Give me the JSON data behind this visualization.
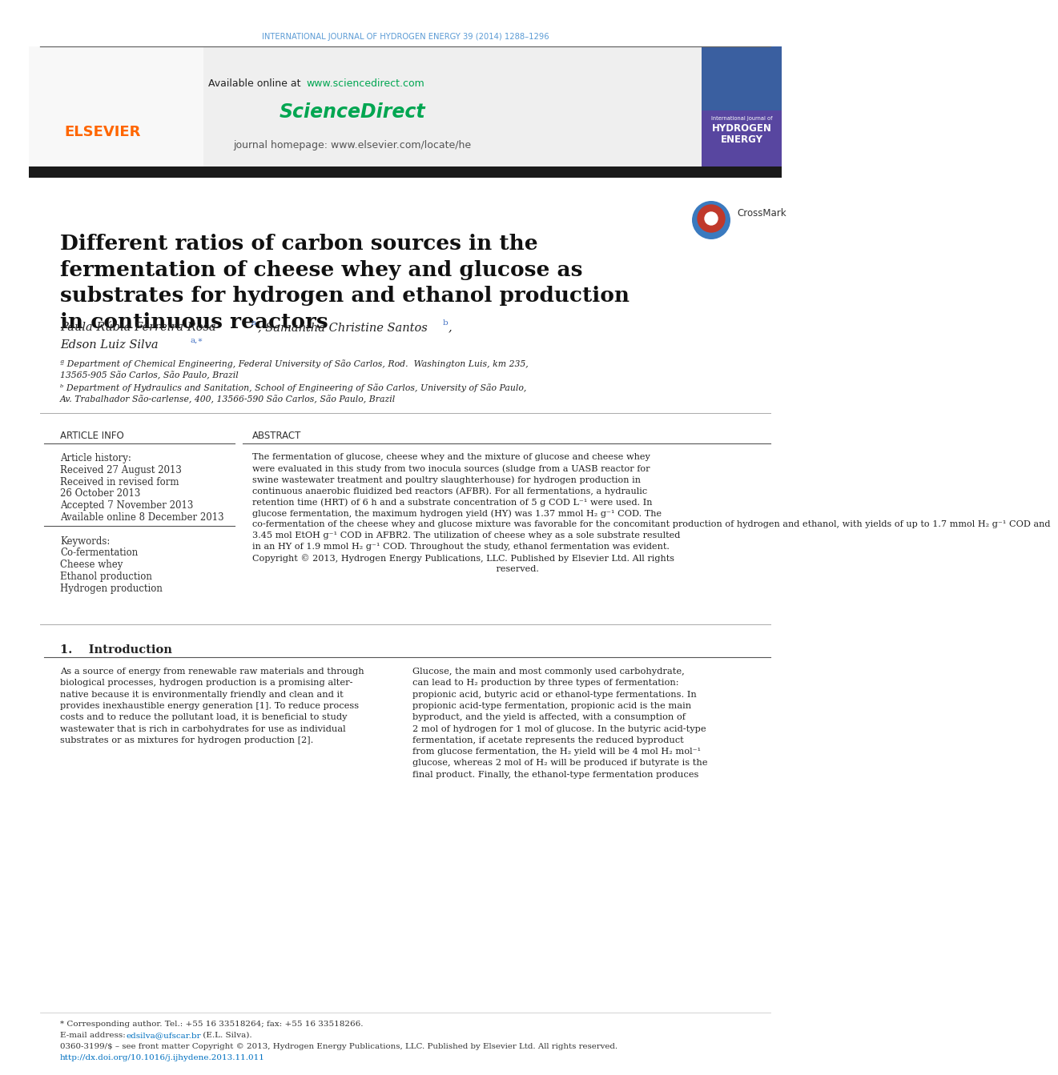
{
  "page_bg": "#ffffff",
  "header_journal": "INTERNATIONAL JOURNAL OF HYDROGEN ENERGY 39 (2014) 1288–1296",
  "header_journal_color": "#5b9bd5",
  "available_online_text": "Available online at ",
  "sciencedirect_url": "www.sciencedirect.com",
  "sciencedirect_url_color": "#00a651",
  "sciencedirect_logo": "ScienceDirect",
  "sciencedirect_logo_color": "#00a651",
  "journal_homepage": "journal homepage: www.elsevier.com/locate/he",
  "header_bg": "#efefef",
  "black_bar_color": "#1a1a1a",
  "title": "Different ratios of carbon sources in the\nfermentation of cheese whey and glucose as\nsubstrates for hydrogen and ethanol production\nin continuous reactors",
  "title_fontsize": 19,
  "affil_a": "ª Department of Chemical Engineering, Federal University of São Carlos, Rod.  Washington Luis, km 235,",
  "affil_a2": "13565-905 São Carlos, São Paulo, Brazil",
  "affil_b": "ᵇ Department of Hydraulics and Sanitation, School of Engineering of São Carlos, University of São Paulo,",
  "affil_b2": "Av. Trabalhador São-carlense, 400, 13566-590 São Carlos, São Paulo, Brazil",
  "article_info_title": "ARTICLE INFO",
  "article_history_label": "Article history:",
  "received1": "Received 27 August 2013",
  "received2": "Received in revised form",
  "received2b": "26 October 2013",
  "accepted": "Accepted 7 November 2013",
  "available_online": "Available online 8 December 2013",
  "keywords_label": "Keywords:",
  "keyword1": "Co-fermentation",
  "keyword2": "Cheese whey",
  "keyword3": "Ethanol production",
  "keyword4": "Hydrogen production",
  "abstract_title": "ABSTRACT",
  "abstract_lines": [
    "The fermentation of glucose, cheese whey and the mixture of glucose and cheese whey",
    "were evaluated in this study from two inocula sources (sludge from a UASB reactor for",
    "swine wastewater treatment and poultry slaughterhouse) for hydrogen production in",
    "continuous anaerobic fluidized bed reactors (AFBR). For all fermentations, a hydraulic",
    "retention time (HRT) of 6 h and a substrate concentration of 5 g COD L⁻¹ were used. In",
    "glucose fermentation, the maximum hydrogen yield (HY) was 1.37 mmol H₂ g⁻¹ COD. The",
    "co-fermentation of the cheese whey and glucose mixture was favorable for the concomitant production of hydrogen and ethanol, with yields of up to 1.7 mmol H₂ g⁻¹ COD and",
    "3.45 mol EtOH g⁻¹ COD in AFBR2. The utilization of cheese whey as a sole substrate resulted",
    "in an HY of 1.9 mmol H₂ g⁻¹ COD. Throughout the study, ethanol fermentation was evident.",
    "Copyright © 2013, Hydrogen Energy Publications, LLC. Published by Elsevier Ltd. All rights",
    "                                                                                    reserved."
  ],
  "intro_title": "1.    Introduction",
  "intro_col1_lines": [
    "As a source of energy from renewable raw materials and through",
    "biological processes, hydrogen production is a promising alter-",
    "native because it is environmentally friendly and clean and it",
    "provides inexhaustible energy generation [1]. To reduce process",
    "costs and to reduce the pollutant load, it is beneficial to study",
    "wastewater that is rich in carbohydrates for use as individual",
    "substrates or as mixtures for hydrogen production [2]."
  ],
  "intro_col2_lines": [
    "Glucose, the main and most commonly used carbohydrate,",
    "can lead to H₂ production by three types of fermentation:",
    "propionic acid, butyric acid or ethanol-type fermentations. In",
    "propionic acid-type fermentation, propionic acid is the main",
    "byproduct, and the yield is affected, with a consumption of",
    "2 mol of hydrogen for 1 mol of glucose. In the butyric acid-type",
    "fermentation, if acetate represents the reduced byproduct",
    "from glucose fermentation, the H₂ yield will be 4 mol H₂ mol⁻¹",
    "glucose, whereas 2 mol of H₂ will be produced if butyrate is the",
    "final product. Finally, the ethanol-type fermentation produces"
  ],
  "footer_corresponding": "* Corresponding author. Tel.: +55 16 33518264; fax: +55 16 33518266.",
  "footer_email_label": "E-mail address: ",
  "footer_email": "edsilva@ufscar.br",
  "footer_email_after": " (E.L. Silva).",
  "footer_issn": "0360-3199/$ – see front matter Copyright © 2013, Hydrogen Energy Publications, LLC. Published by Elsevier Ltd. All rights reserved.",
  "footer_doi": "http://dx.doi.org/10.1016/j.ijhydene.2013.11.011",
  "footer_doi_color": "#0070c0",
  "elsevier_color": "#ff6600",
  "superscript_color": "#4472c4",
  "line_color": "#888888",
  "text_dark": "#222222",
  "text_mid": "#333333",
  "text_light": "#555555"
}
